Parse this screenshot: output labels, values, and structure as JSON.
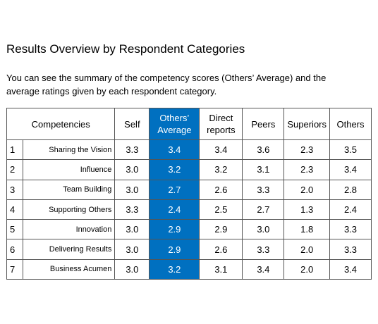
{
  "header": {
    "title": "Results Overview by Respondent Categories",
    "description": "You can see the summary of the competency scores (Others’ Average) and the average ratings given by each respondent category."
  },
  "table": {
    "columns": [
      "Competencies",
      "Self",
      "Others’ Average",
      "Direct reports",
      "Peers",
      "Superiors",
      "Others"
    ],
    "rows": [
      [
        "1",
        "Sharing the Vision",
        "3.3",
        "3.4",
        "3.4",
        "3.6",
        "2.3",
        "3.5"
      ],
      [
        "2",
        "Influence",
        "3.0",
        "3.2",
        "3.2",
        "3.1",
        "2.3",
        "3.4"
      ],
      [
        "3",
        "Team Building",
        "3.0",
        "2.7",
        "2.6",
        "3.3",
        "2.0",
        "2.8"
      ],
      [
        "4",
        "Supporting Others",
        "3.3",
        "2.4",
        "2.5",
        "2.7",
        "1.3",
        "2.4"
      ],
      [
        "5",
        "Innovation",
        "3.0",
        "2.9",
        "2.9",
        "3.0",
        "1.8",
        "3.3"
      ],
      [
        "6",
        "Delivering Results",
        "3.0",
        "2.9",
        "2.6",
        "3.3",
        "2.0",
        "3.3"
      ],
      [
        "7",
        "Business Acumen",
        "3.0",
        "3.2",
        "3.1",
        "3.4",
        "2.0",
        "3.4"
      ]
    ]
  }
}
